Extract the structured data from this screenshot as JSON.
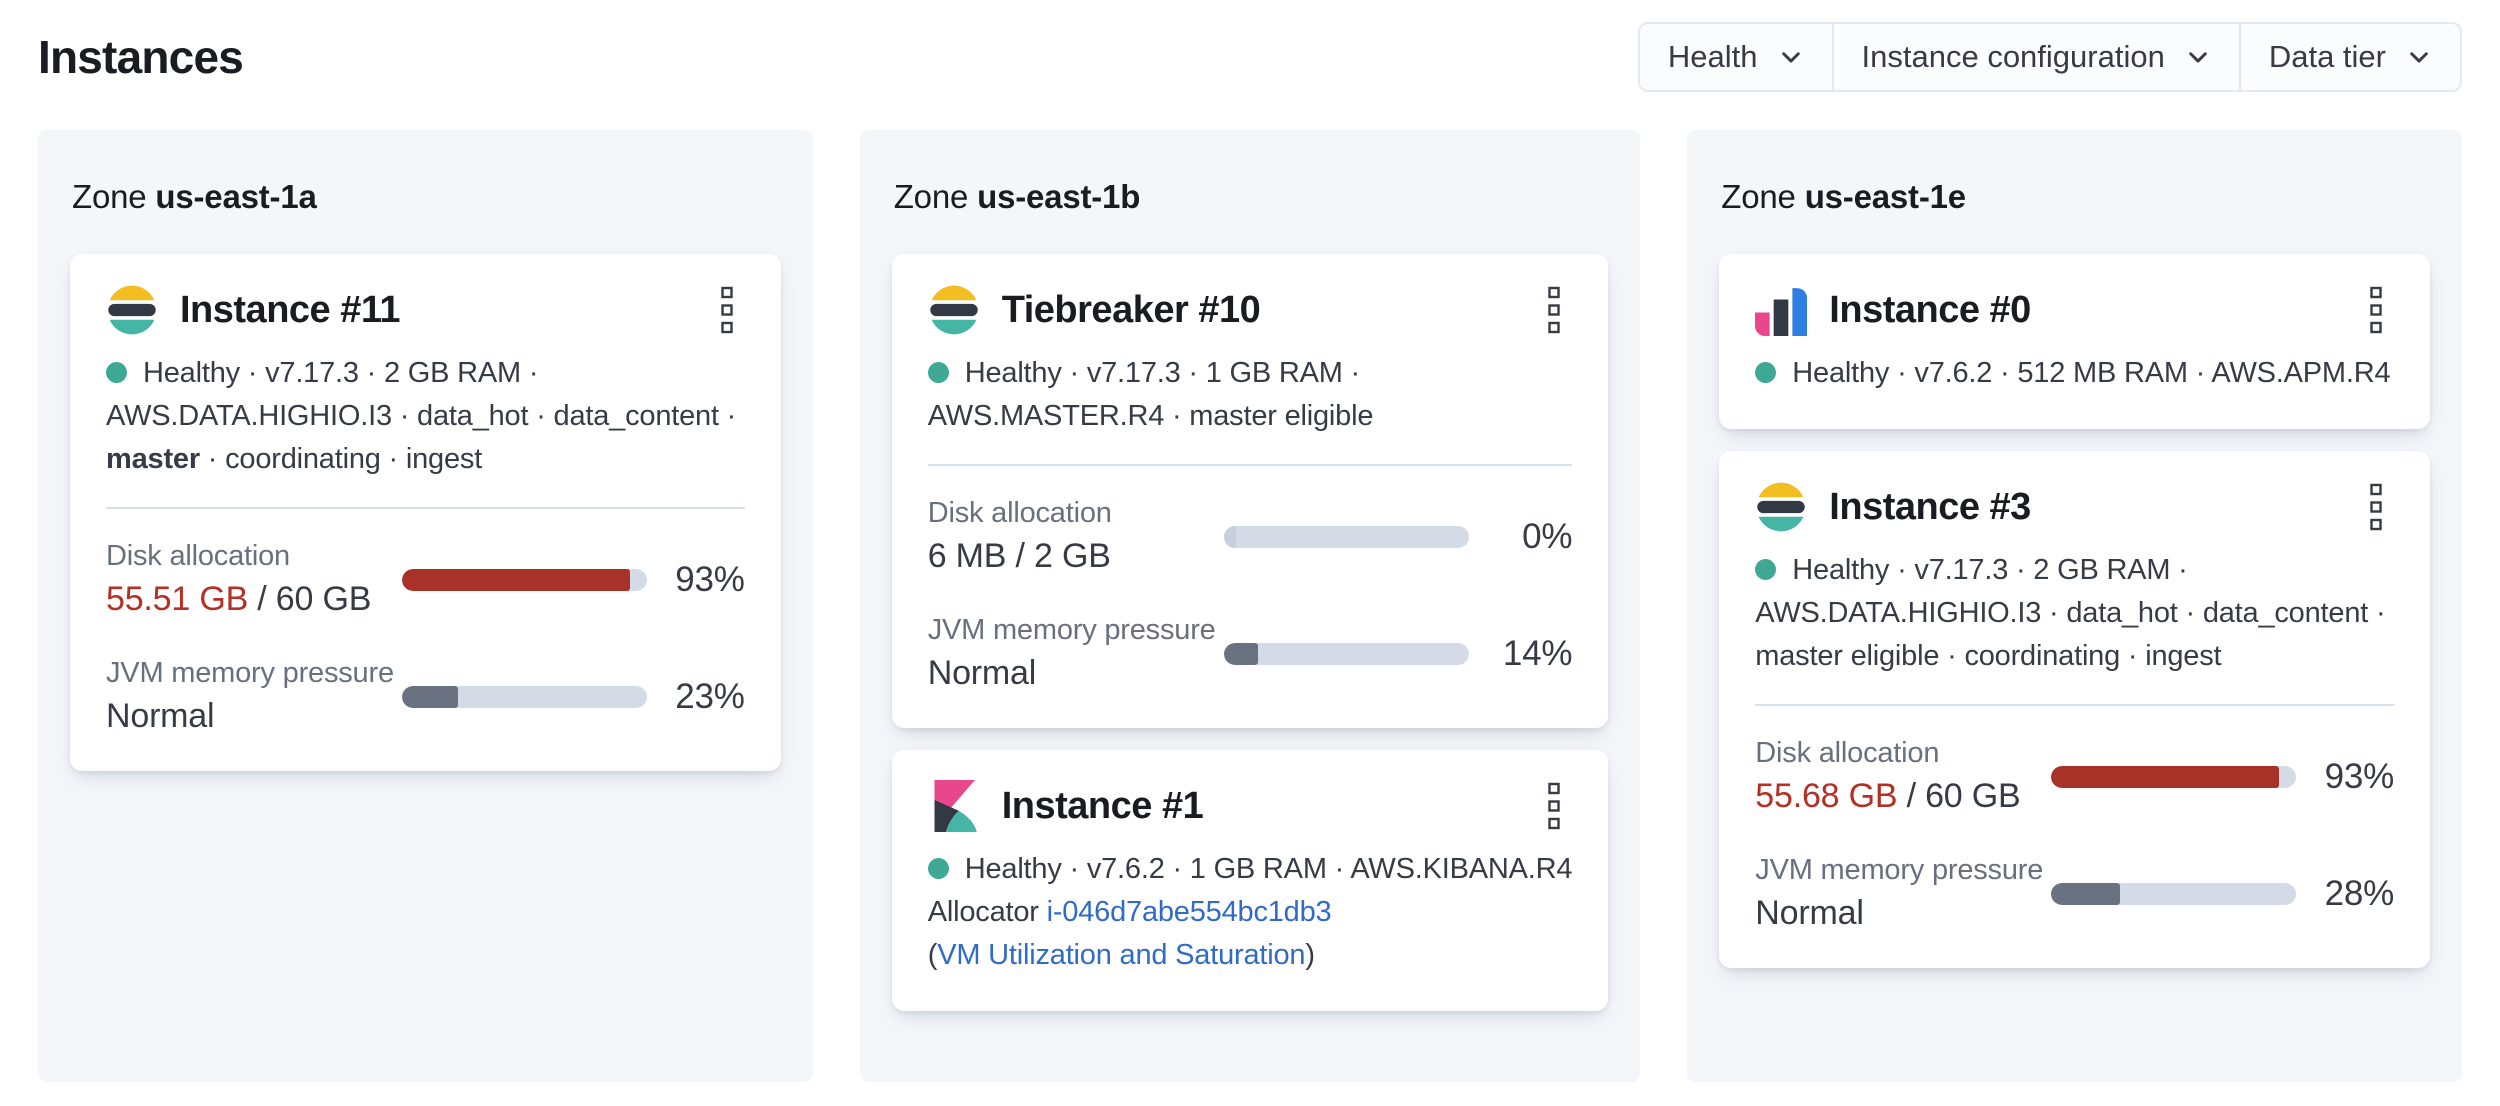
{
  "page": {
    "title": "Instances"
  },
  "filters": {
    "health": "Health",
    "instance_configuration": "Instance configuration",
    "data_tier": "Data tier"
  },
  "colors": {
    "panel_bg": "#F4F6FA",
    "health_dot": "#3FA894",
    "danger_bar": "#A83128",
    "danger_text": "#B43024",
    "gray_bar": "#6A7180",
    "bar_track": "#D5DBE6",
    "link": "#2F6BC7",
    "elasticsearch_yellow": "#F2BE22",
    "elasticsearch_teal": "#45B5A6",
    "kibana_pink": "#E8478B",
    "apm_blue": "#2E7DE1",
    "logo_dark": "#333845"
  },
  "zones": [
    {
      "label": "Zone",
      "name": "us-east-1a",
      "instances": [
        {
          "title": "Instance #11",
          "icon": "elasticsearch",
          "lines": [
            {
              "text": "Healthy · v7.17.3 · 2 GB RAM ·"
            },
            {
              "text": "AWS.DATA.HIGHIO.I3 · data_hot · data_content ·"
            },
            {
              "bold": "master",
              "text": " · coordinating · ingest"
            }
          ],
          "disk": {
            "label": "Disk allocation",
            "used": "55.51 GB",
            "rest": " / 60 GB",
            "percent": 93,
            "percent_label": "93%"
          },
          "jvm": {
            "label": "JVM memory pressure",
            "value": "Normal",
            "percent": 23,
            "percent_label": "23%"
          }
        }
      ]
    },
    {
      "label": "Zone",
      "name": "us-east-1b",
      "instances": [
        {
          "title": "Tiebreaker #10",
          "icon": "elasticsearch",
          "lines": [
            {
              "text": "Healthy · v7.17.3 · 1 GB RAM ·"
            },
            {
              "text": "AWS.MASTER.R4 · master eligible"
            }
          ],
          "disk": {
            "label": "Disk allocation",
            "value": "6 MB / 2 GB",
            "percent": 0,
            "percent_label": "0%"
          },
          "jvm": {
            "label": "JVM memory pressure",
            "value": "Normal",
            "percent": 14,
            "percent_label": "14%"
          }
        },
        {
          "title": "Instance #1",
          "icon": "kibana",
          "lines": [
            {
              "text": "Healthy · v7.6.2 · 1 GB RAM · AWS.KIBANA.R4"
            }
          ],
          "allocator": {
            "label": "Allocator",
            "id": "i-046d7abe554bc1db3"
          },
          "vm_link": {
            "open": "(",
            "text": "VM Utilization and Saturation",
            "close": ")"
          }
        }
      ]
    },
    {
      "label": "Zone",
      "name": "us-east-1e",
      "instances": [
        {
          "title": "Instance #0",
          "icon": "apm",
          "lines": [
            {
              "text": "Healthy · v7.6.2 · 512 MB RAM · AWS.APM.R4"
            }
          ]
        },
        {
          "title": "Instance #3",
          "icon": "elasticsearch",
          "lines": [
            {
              "text": "Healthy · v7.17.3 · 2 GB RAM ·"
            },
            {
              "text": "AWS.DATA.HIGHIO.I3 · data_hot · data_content ·"
            },
            {
              "text": "master eligible · coordinating · ingest"
            }
          ],
          "disk": {
            "label": "Disk allocation",
            "used": "55.68 GB",
            "rest": " / 60 GB",
            "percent": 93,
            "percent_label": "93%"
          },
          "jvm": {
            "label": "JVM memory pressure",
            "value": "Normal",
            "percent": 28,
            "percent_label": "28%"
          }
        }
      ]
    }
  ]
}
